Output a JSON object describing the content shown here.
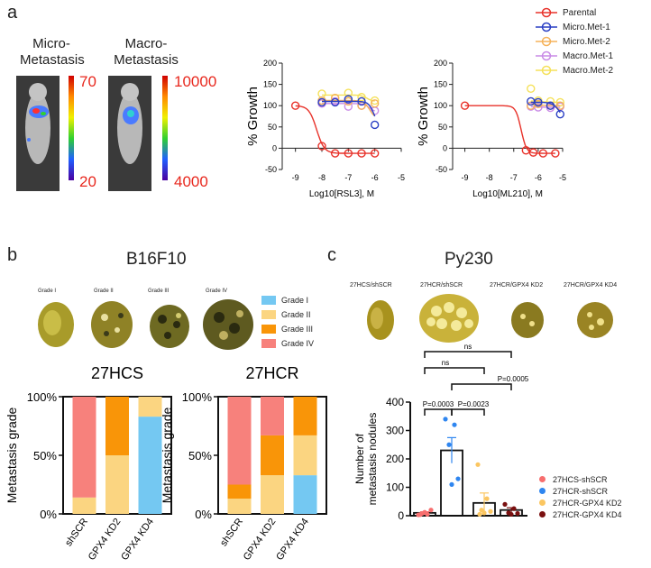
{
  "panel_a": {
    "letter": "a",
    "micro_label": [
      "Micro-",
      "Metastasis"
    ],
    "macro_label": [
      "Macro-",
      "Metastasis"
    ],
    "micro_scale": {
      "max": "70",
      "min": "20"
    },
    "macro_scale": {
      "max": "10000",
      "min": "4000"
    },
    "legend": [
      {
        "name": "Parental",
        "color": "#e8322a"
      },
      {
        "name": "Micro.Met-1",
        "color": "#2a3fc4"
      },
      {
        "name": "Micro.Met-2",
        "color": "#f5b25a"
      },
      {
        "name": "Macro.Met-1",
        "color": "#c98ae6"
      },
      {
        "name": "Macro.Met-2",
        "color": "#f5e15a"
      }
    ]
  },
  "panel_b": {
    "letter": "b",
    "title": "B16F10",
    "grades": [
      "Grade I",
      "Grade II",
      "Grade III",
      "Grade IV"
    ],
    "grade_colors": [
      "#74c8f2",
      "#fbd581",
      "#f99508",
      "#f7817c"
    ],
    "legend": [
      "Grade I",
      "Grade II",
      "Grade III",
      "Grade IV"
    ]
  },
  "panel_c": {
    "letter": "c",
    "title": "Py230",
    "photo_labels": [
      "27HCS/shSCR",
      "27HCR/shSCR",
      "27HCR/GPX4 KD2",
      "27HCR/GPX4 KD4"
    ],
    "legend": [
      {
        "name": "27HCS-shSCR",
        "color": "#f76e6e"
      },
      {
        "name": "27HCR-shSCR",
        "color": "#2f86f0"
      },
      {
        "name": "27HCR-GPX4 KD2",
        "color": "#fbc661"
      },
      {
        "name": "27HCR-GPX4 KD4",
        "color": "#7a1010"
      }
    ]
  },
  "chart_data": [
    {
      "type": "line",
      "xlabel": "Log10[RSL3], M",
      "ylabel": "% Growth",
      "xlim": [
        -9.5,
        -5
      ],
      "ylim": [
        -50,
        200
      ],
      "xticks": [
        -9,
        -8,
        -7,
        -6,
        -5
      ],
      "yticks": [
        -50,
        0,
        50,
        100,
        150,
        200
      ],
      "series": [
        {
          "name": "Parental",
          "color": "#e8322a",
          "x": [
            -9,
            -8,
            -7.5,
            -7,
            -6.5,
            -6
          ],
          "y": [
            100,
            5,
            -12,
            -12,
            -12,
            -12
          ],
          "fit": {
            "top": 100,
            "bottom": -12,
            "ec50": -8.2,
            "hill": 3
          }
        },
        {
          "name": "Micro.Met-1",
          "color": "#2a3fc4",
          "x": [
            -8,
            -7.5,
            -7,
            -6.5,
            -6
          ],
          "y": [
            108,
            108,
            115,
            110,
            55
          ],
          "fit": {
            "top": 110,
            "bottom": 40,
            "ec50": -6.0,
            "hill": 4
          }
        },
        {
          "name": "Micro.Met-2",
          "color": "#f5b25a",
          "x": [
            -8,
            -7.5,
            -7,
            -6.5,
            -6
          ],
          "y": [
            112,
            118,
            110,
            100,
            105
          ],
          "fit": {
            "top": 112,
            "bottom": 70,
            "ec50": -6.2,
            "hill": 4
          }
        },
        {
          "name": "Macro.Met-1",
          "color": "#c98ae6",
          "x": [
            -8,
            -7.5,
            -7,
            -6.5,
            -6
          ],
          "y": [
            105,
            110,
            98,
            100,
            88
          ],
          "fit": {
            "top": 105,
            "bottom": 85,
            "ec50": -6.2,
            "hill": 4
          }
        },
        {
          "name": "Macro.Met-2",
          "color": "#f5e15a",
          "x": [
            -8,
            -7.5,
            -7,
            -6.5,
            -6
          ],
          "y": [
            128,
            118,
            130,
            120,
            112
          ],
          "fit": {
            "top": 125,
            "bottom": 110,
            "ec50": -6.3,
            "hill": 4
          }
        }
      ]
    },
    {
      "type": "line",
      "xlabel": "Log10[ML210], M",
      "ylabel": "% Growth",
      "xlim": [
        -9.5,
        -5
      ],
      "ylim": [
        -50,
        200
      ],
      "xticks": [
        -9,
        -8,
        -7,
        -6,
        -5
      ],
      "yticks": [
        -50,
        0,
        50,
        100,
        150,
        200
      ],
      "series": [
        {
          "name": "Parental",
          "color": "#e8322a",
          "x": [
            -9,
            -6.5,
            -6.2,
            -5.8,
            -5.3
          ],
          "y": [
            100,
            -5,
            -10,
            -12,
            -12
          ],
          "fit": {
            "top": 100,
            "bottom": -12,
            "ec50": -6.7,
            "hill": 4
          }
        },
        {
          "name": "Micro.Met-1",
          "color": "#2a3fc4",
          "x": [
            -6.3,
            -6,
            -5.5,
            -5.1
          ],
          "y": [
            110,
            108,
            100,
            80
          ],
          "fit": {
            "top": 108,
            "bottom": 60,
            "ec50": -5.1,
            "hill": 3
          }
        },
        {
          "name": "Micro.Met-2",
          "color": "#f5b25a",
          "x": [
            -6.3,
            -6,
            -5.5,
            -5.1
          ],
          "y": [
            100,
            104,
            100,
            100
          ],
          "fit": {
            "top": 103,
            "bottom": 100,
            "ec50": -6,
            "hill": 2
          }
        },
        {
          "name": "Macro.Met-1",
          "color": "#c98ae6",
          "x": [
            -6.3,
            -6,
            -5.5,
            -5.1
          ],
          "y": [
            98,
            96,
            95,
            98
          ],
          "fit": {
            "top": 98,
            "bottom": 96,
            "ec50": -6,
            "hill": 2
          }
        },
        {
          "name": "Macro.Met-2",
          "color": "#f5e15a",
          "x": [
            -6.3,
            -6,
            -5.5,
            -5.1
          ],
          "y": [
            140,
            112,
            110,
            108
          ],
          "fit": {
            "top": 112,
            "bottom": 108,
            "ec50": -6,
            "hill": 2
          }
        }
      ]
    },
    {
      "type": "bar",
      "title": "27HCS",
      "ylabel": "Metastasis grade",
      "categories": [
        "shSCR",
        "GPX4 KD2",
        "GPX4 KD4"
      ],
      "yticks": [
        "0%",
        "50%",
        "100%"
      ],
      "series": [
        {
          "name": "Grade I",
          "values": [
            0,
            0,
            83
          ]
        },
        {
          "name": "Grade II",
          "values": [
            14,
            50,
            17
          ]
        },
        {
          "name": "Grade III",
          "values": [
            0,
            50,
            0
          ]
        },
        {
          "name": "Grade IV",
          "values": [
            86,
            0,
            0
          ]
        }
      ]
    },
    {
      "type": "bar",
      "title": "27HCR",
      "ylabel": "Metastasis grade",
      "categories": [
        "shSCR",
        "GPX4 KD2",
        "GPX4 KD4"
      ],
      "yticks": [
        "0%",
        "50%",
        "100%"
      ],
      "series": [
        {
          "name": "Grade I",
          "values": [
            0,
            0,
            33
          ]
        },
        {
          "name": "Grade II",
          "values": [
            13,
            33,
            34
          ]
        },
        {
          "name": "Grade III",
          "values": [
            12,
            34,
            33
          ]
        },
        {
          "name": "Grade IV",
          "values": [
            75,
            33,
            0
          ]
        }
      ]
    },
    {
      "type": "scatter",
      "ylabel": "Number of metastasis nodules",
      "ylim": [
        0,
        400
      ],
      "yticks": [
        0,
        100,
        200,
        300,
        400
      ],
      "groups": [
        {
          "name": "27HCS-shSCR",
          "color": "#f76e6e",
          "mean": 10,
          "sem": 4,
          "points": [
            3,
            5,
            8,
            20,
            12,
            4
          ]
        },
        {
          "name": "27HCR-shSCR",
          "color": "#2f86f0",
          "mean": 230,
          "sem": 45,
          "points": [
            340,
            320,
            250,
            130,
            110
          ]
        },
        {
          "name": "27HCR-GPX4 KD2",
          "color": "#fbc661",
          "mean": 45,
          "sem": 35,
          "points": [
            180,
            60,
            20,
            15,
            10,
            5
          ]
        },
        {
          "name": "27HCR-GPX4 KD4",
          "color": "#7a1010",
          "mean": 20,
          "sem": 8,
          "points": [
            40,
            25,
            10,
            8,
            5
          ]
        }
      ],
      "annotations": [
        "ns",
        "ns",
        "P=0.0005",
        "P=0.0003",
        "P=0.0023"
      ]
    }
  ]
}
